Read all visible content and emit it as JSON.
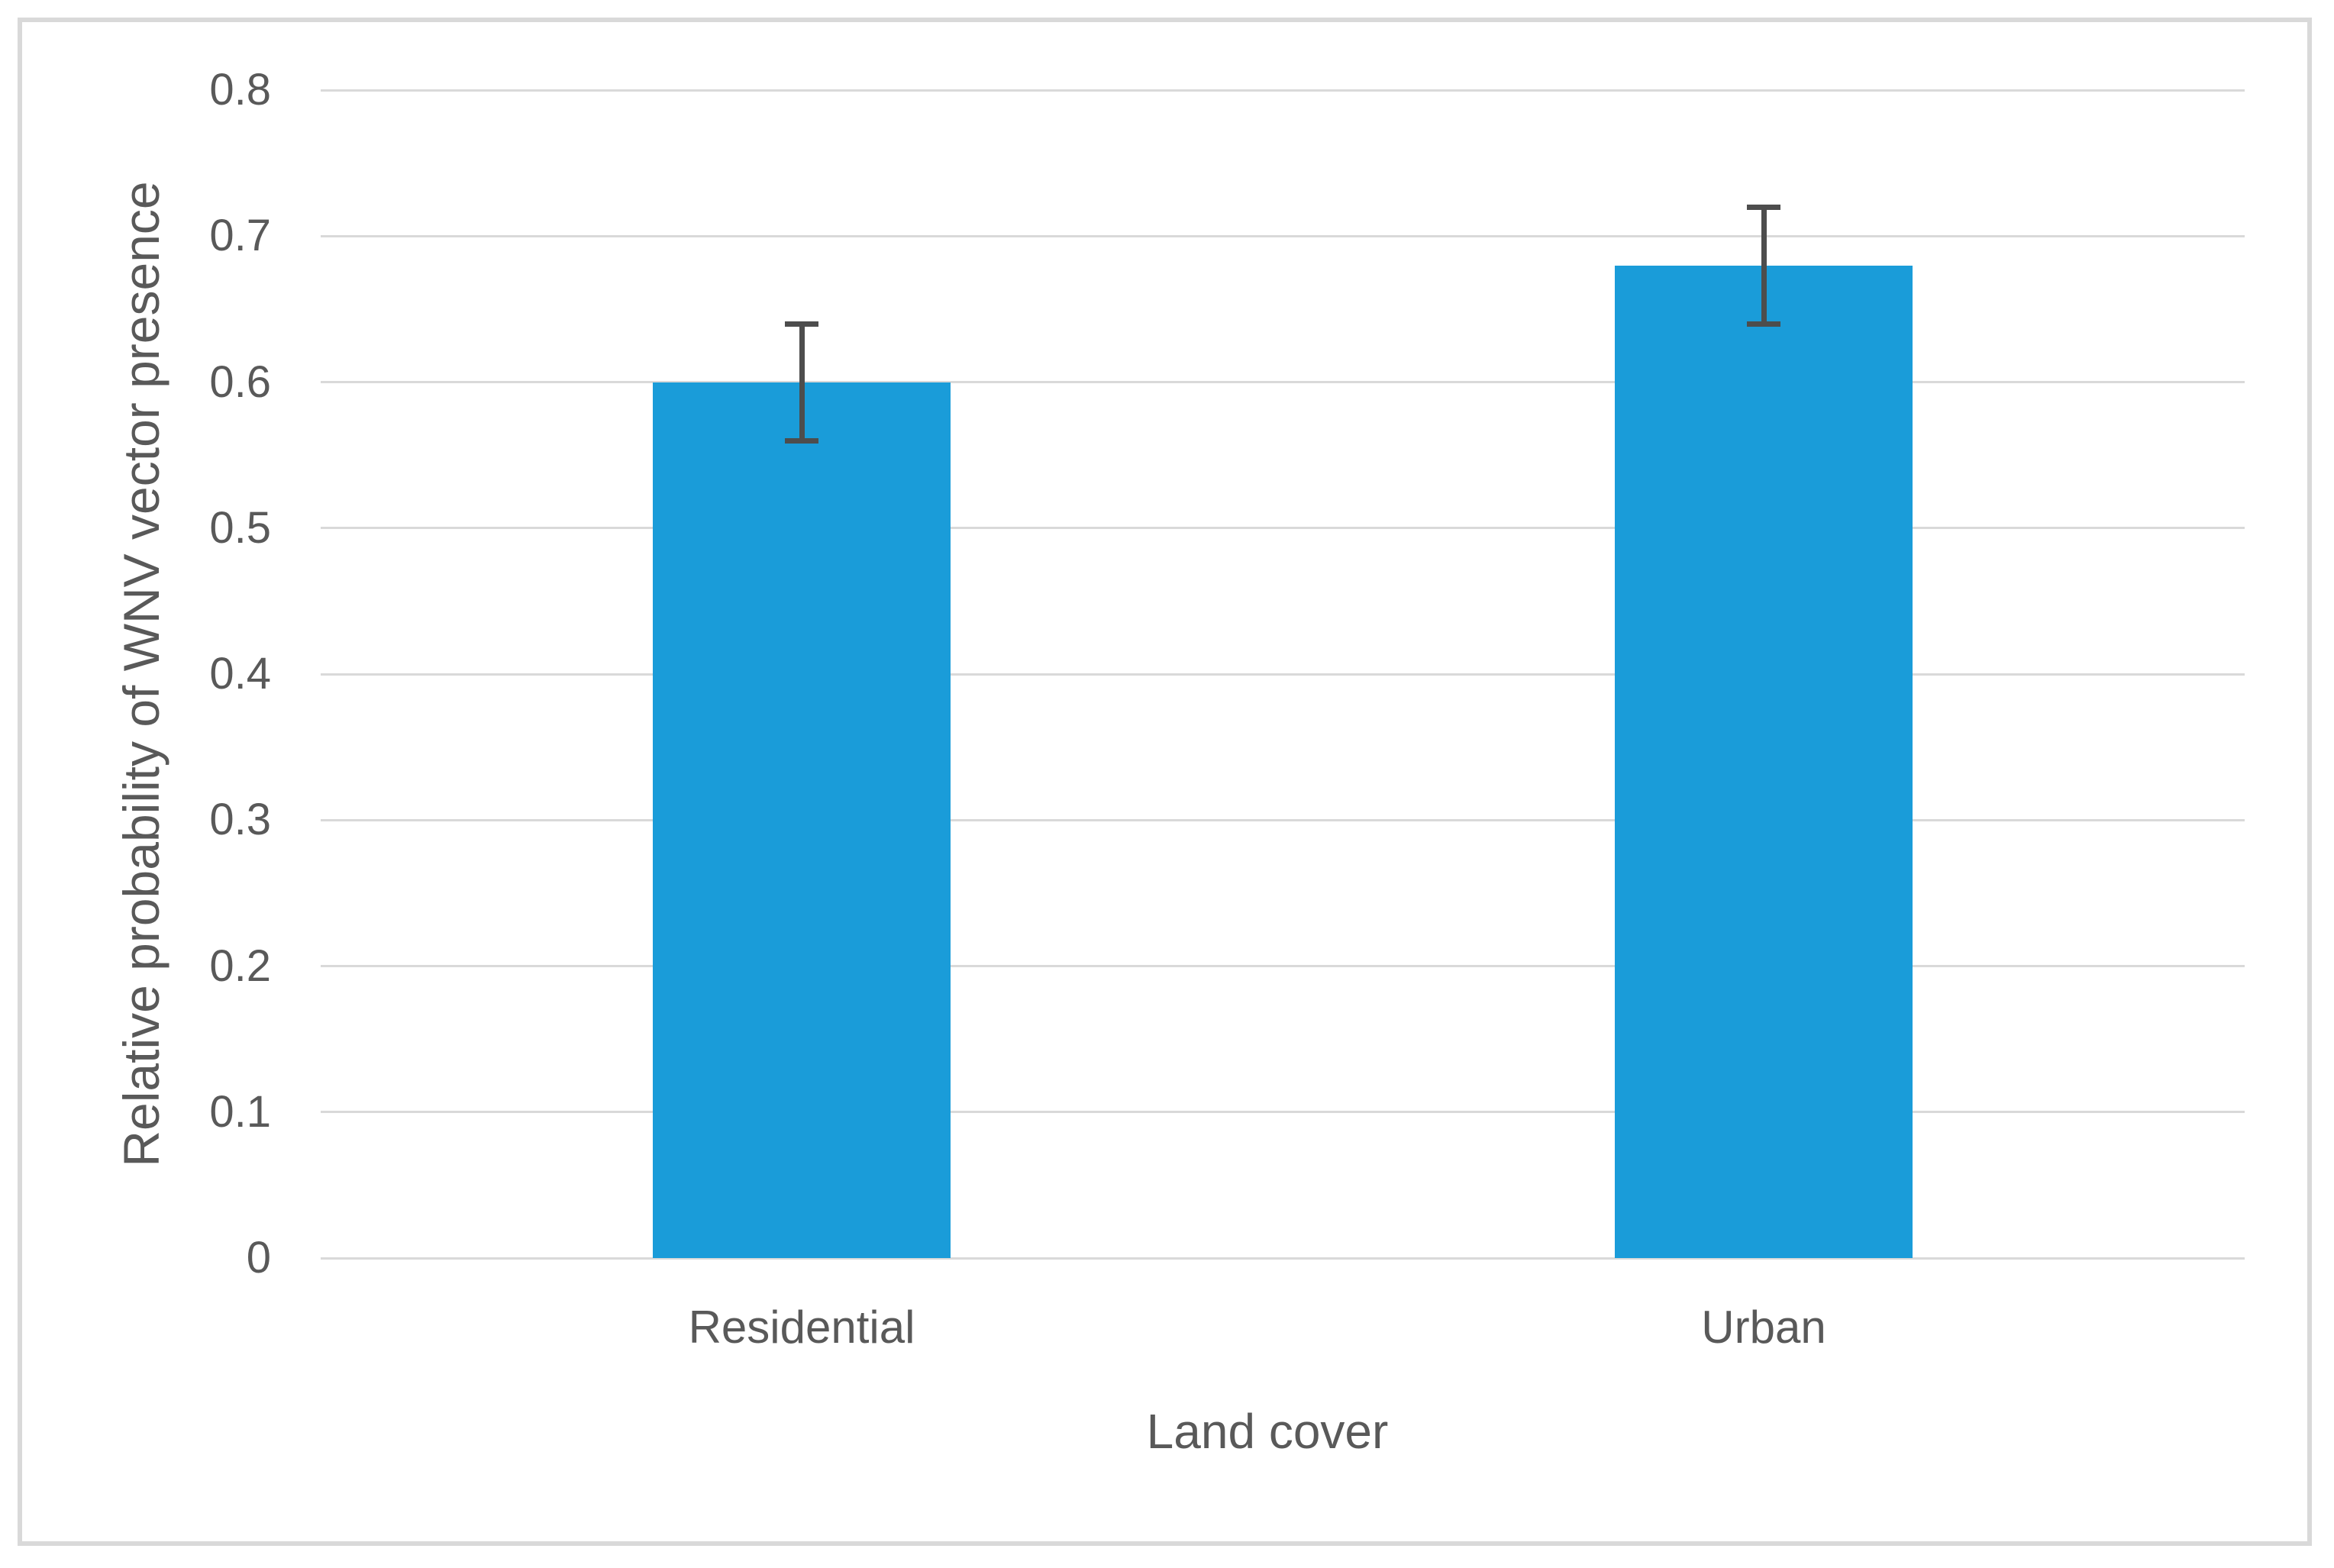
{
  "chart_data": {
    "type": "bar",
    "categories": [
      "Residential",
      "Urban"
    ],
    "values": [
      0.6,
      0.68
    ],
    "errors": [
      0.04,
      0.04
    ],
    "title": "",
    "xlabel": "Land cover",
    "ylabel": "Relative probability of WNV vector presence",
    "ylim": [
      0,
      0.8
    ],
    "yticks": [
      0,
      0.1,
      0.2,
      0.3,
      0.4,
      0.5,
      0.6,
      0.7,
      0.8
    ],
    "ytick_labels": [
      "0",
      "0.1",
      "0.2",
      "0.3",
      "0.4",
      "0.5",
      "0.6",
      "0.7",
      "0.8"
    ],
    "grid": "horizontal-only",
    "legend": "none",
    "colors": {
      "bar_fill": "#1a9cd9",
      "error_bar": "#4d4d4d",
      "gridline": "#d9d9d9",
      "frame_border": "#d9d9d9",
      "text": "#595959",
      "background": "#ffffff"
    }
  }
}
